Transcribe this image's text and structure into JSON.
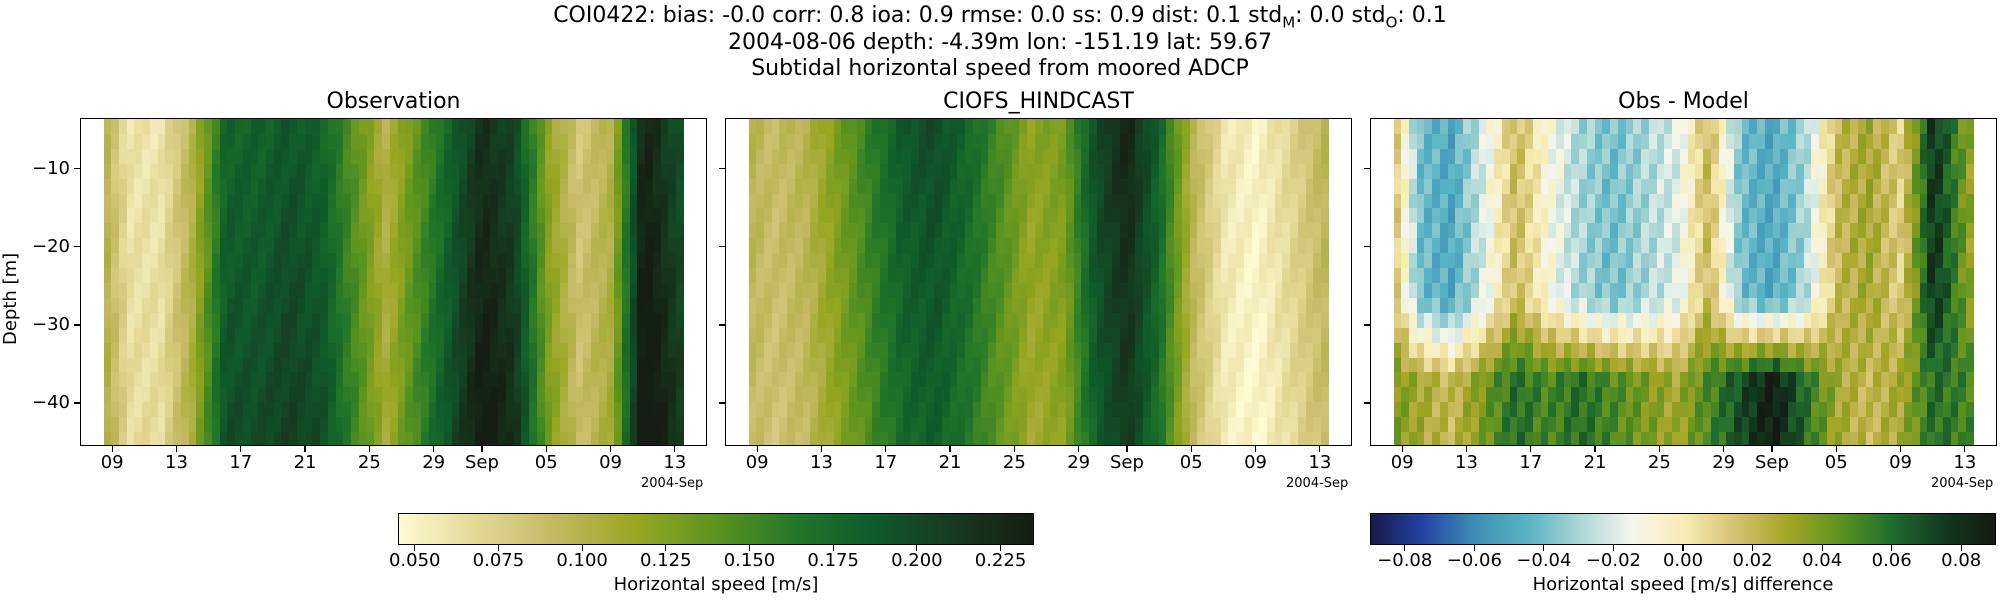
{
  "titles": {
    "line1": "COI0422: bias: -0.0  corr: 0.8  ioa: 0.9  rmse: 0.0  ss: 0.9  dist: 0.1  std",
    "line1_sub_m": "M",
    "line1_mid": ": 0.0  std",
    "line1_sub_o": "O",
    "line1_end": ": 0.1",
    "line2": "2004-08-06 depth: -4.39m lon: -151.19 lat: 59.67",
    "line3": "Subtidal horizontal speed from moored ADCP"
  },
  "colors": {
    "speed_colormap": [
      "#fdfbd2",
      "#e4d795",
      "#c3b860",
      "#97a621",
      "#5c9420",
      "#237728",
      "#0f5a2a",
      "#163a1f",
      "#151d14"
    ],
    "diff_colormap": [
      "#161b48",
      "#2442a4",
      "#3d8fb5",
      "#57b3c4",
      "#a9d6d4",
      "#f4f6ee",
      "#f9edb4",
      "#d6c272",
      "#a5a526",
      "#5f941e",
      "#1f6e2e",
      "#123b1e",
      "#141a13"
    ]
  },
  "chart_data": [
    {
      "type": "heatmap",
      "title": "Observation",
      "xlabel": "",
      "ylabel": "Depth [m]",
      "x_tick_labels": [
        "09",
        "13",
        "17",
        "21",
        "25",
        "29",
        "Sep",
        "05",
        "09",
        "13"
      ],
      "x_offset_label": "2004-Sep",
      "xlim": [
        "2004-08-07",
        "2004-09-15"
      ],
      "y_tick_values": [
        -10,
        -20,
        -30,
        -40
      ],
      "y_tick_labels": [
        "−10",
        "−20",
        "−30",
        "−40"
      ],
      "ylim": [
        -45.5,
        -3.5
      ],
      "time_days": [
        8.4,
        10,
        12,
        14,
        16,
        18,
        20,
        22,
        24,
        26,
        28,
        30,
        32,
        34,
        36,
        38,
        40,
        42,
        44.5
      ],
      "profile_speed": [
        0.1,
        0.06,
        0.06,
        0.1,
        0.18,
        0.18,
        0.19,
        0.18,
        0.14,
        0.1,
        0.14,
        0.18,
        0.22,
        0.2,
        0.12,
        0.08,
        0.1,
        0.23,
        0.19
      ],
      "depth_factor_bottom": 1.1,
      "colorbar": {
        "label": "Horizontal speed [m/s]",
        "ticks": [
          "0.050",
          "0.075",
          "0.100",
          "0.125",
          "0.150",
          "0.175",
          "0.200",
          "0.225"
        ],
        "range": [
          0.045,
          0.235
        ]
      }
    },
    {
      "type": "heatmap",
      "title": "CIOFS_HINDCAST",
      "xlabel": "",
      "ylabel": "",
      "x_tick_labels": [
        "09",
        "13",
        "17",
        "21",
        "25",
        "29",
        "Sep",
        "05",
        "09",
        "13"
      ],
      "x_offset_label": "2004-Sep",
      "xlim": [
        "2004-08-07",
        "2004-09-15"
      ],
      "ylim": [
        -45.5,
        -3.5
      ],
      "time_days": [
        8.4,
        10,
        12,
        14,
        16,
        18,
        20,
        22,
        24,
        26,
        28,
        30,
        32,
        34,
        36,
        38,
        40,
        42,
        44.5
      ],
      "profile_speed": [
        0.1,
        0.09,
        0.1,
        0.13,
        0.16,
        0.19,
        0.2,
        0.18,
        0.15,
        0.12,
        0.13,
        0.2,
        0.23,
        0.18,
        0.1,
        0.06,
        0.05,
        0.07,
        0.1
      ],
      "depth_factor_bottom": 0.92
    },
    {
      "type": "heatmap",
      "title": "Obs - Model",
      "xlabel": "",
      "ylabel": "",
      "x_tick_labels": [
        "09",
        "13",
        "17",
        "21",
        "25",
        "29",
        "Sep",
        "05",
        "09",
        "13"
      ],
      "x_offset_label": "2004-Sep",
      "xlim": [
        "2004-08-07",
        "2004-09-15"
      ],
      "ylim": [
        -45.5,
        -3.5
      ],
      "time_days": [
        8.4,
        10,
        12,
        14,
        16,
        18,
        20,
        22,
        24,
        26,
        28,
        30,
        32,
        34,
        36,
        38,
        40,
        42,
        44.5
      ],
      "profile_diff_upper": [
        0.02,
        -0.04,
        -0.05,
        -0.02,
        0.02,
        -0.01,
        -0.03,
        -0.04,
        -0.03,
        -0.02,
        0.02,
        -0.04,
        -0.05,
        -0.03,
        0.02,
        0.03,
        0.01,
        0.08,
        0.03
      ],
      "profile_diff_lower": [
        0.04,
        0.03,
        0.02,
        0.04,
        0.06,
        0.05,
        0.06,
        0.05,
        0.04,
        0.03,
        0.05,
        0.07,
        0.09,
        0.06,
        0.03,
        0.02,
        0.03,
        0.06,
        0.05
      ],
      "colorbar": {
        "label": "Horizontal speed [m/s] difference",
        "ticks": [
          "−0.08",
          "−0.06",
          "−0.04",
          "−0.02",
          "0.00",
          "0.02",
          "0.04",
          "0.06",
          "0.08"
        ],
        "range": [
          -0.09,
          0.09
        ]
      }
    }
  ]
}
